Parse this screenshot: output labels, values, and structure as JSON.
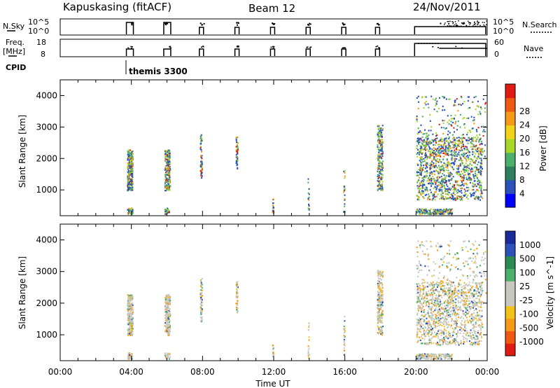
{
  "header": {
    "station": "Kapuskasing (fitACF)",
    "beam": "Beam 12",
    "date": "24/Nov/2011"
  },
  "panels": {
    "nsky": {
      "left_label": "N.Sky",
      "ticks_left": [
        "10^5",
        "10^0"
      ],
      "ticks_right": [
        "10^5",
        "10^0"
      ],
      "right_label": "N.Search"
    },
    "freq": {
      "left_label_1": "Freq.",
      "left_label_2": "[MHz]",
      "ticks_left": [
        "18",
        "8"
      ],
      "ticks_right": [
        "60",
        "0"
      ],
      "right_label": "Nave"
    },
    "cpid": {
      "label": "CPID",
      "program": "themis 3300"
    }
  },
  "colors": {
    "power": [
      "#0000ff",
      "#2a52b8",
      "#2c8060",
      "#4caf6a",
      "#a8d62a",
      "#f3d21a",
      "#f59a16",
      "#ee5a12",
      "#e01c10"
    ],
    "velocity": [
      "#e01c10",
      "#ee5a12",
      "#f59a16",
      "#f3c21a",
      "#c8c8c0",
      "#c8c8c0",
      "#4caf6a",
      "#2a8a50",
      "#2a52b8",
      "#1a2a9a"
    ]
  },
  "chart_data": [
    {
      "type": "heatmap",
      "name": "power",
      "xlabel": "",
      "ylabel": "Slant Range [km]",
      "x_ticks": [
        "00:00",
        "04:00",
        "08:00",
        "12:00",
        "16:00",
        "20:00",
        "00:00"
      ],
      "y_ticks": [
        "1000",
        "2000",
        "3000",
        "4000"
      ],
      "xlim_hours": [
        0,
        24
      ],
      "ylim_km": [
        180,
        4500
      ],
      "colorbar": {
        "label": "Power [dB]",
        "ticks": [
          "4",
          "8",
          "12",
          "16",
          "20",
          "24",
          "28"
        ]
      },
      "scan_blocks_hours": [
        3.8,
        5.9,
        7.9,
        9.9,
        11.9,
        13.9,
        15.9,
        17.8,
        20.0
      ]
    },
    {
      "type": "heatmap",
      "name": "velocity",
      "xlabel": "Time UT",
      "ylabel": "Slant Range [km]",
      "x_ticks": [
        "00:00",
        "04:00",
        "08:00",
        "12:00",
        "16:00",
        "20:00",
        "00:00"
      ],
      "y_ticks": [
        "1000",
        "2000",
        "3000",
        "4000"
      ],
      "xlim_hours": [
        0,
        24
      ],
      "ylim_km": [
        180,
        4500
      ],
      "colorbar": {
        "label": "Velocity [m s^-1]",
        "ticks": [
          "1000",
          "500",
          "100",
          "25",
          "-25",
          "-100",
          "-500",
          "-1000"
        ]
      }
    }
  ]
}
